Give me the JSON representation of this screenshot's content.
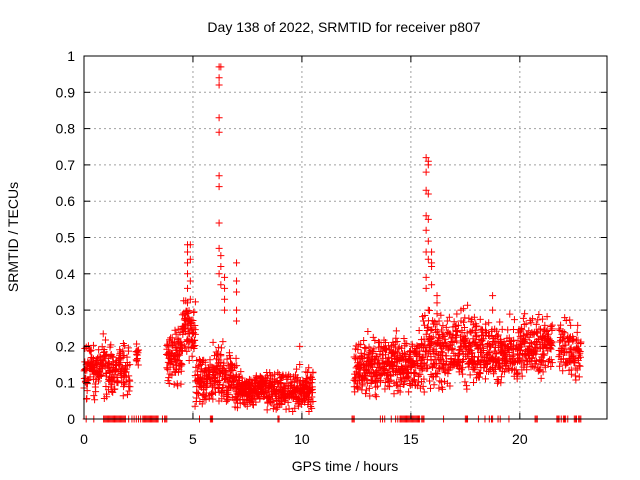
{
  "chart_data": {
    "type": "scatter",
    "title": "Day 138 of 2022, SRMTID for receiver p807",
    "xlabel": "GPS time / hours",
    "ylabel": "SRMTID / TECUs",
    "xlim": [
      0,
      24
    ],
    "ylim": [
      0,
      1
    ],
    "xticks": [
      0,
      5,
      10,
      15,
      20
    ],
    "xtick_labels": [
      "0",
      "5",
      "10",
      "15",
      "20"
    ],
    "yticks": [
      0,
      0.1,
      0.2,
      0.3,
      0.4,
      0.5,
      0.6,
      0.7,
      0.8,
      0.9,
      1
    ],
    "ytick_labels": [
      "0",
      "0.1",
      "0.2",
      "0.3",
      "0.4",
      "0.5",
      "0.6",
      "0.7",
      "0.8",
      "0.9",
      "1"
    ],
    "grid": true,
    "marker": "plus",
    "series": [
      {
        "name": "SRMTID",
        "color": "#ff0000",
        "segments": [
          {
            "t0": 0.0,
            "t1": 2.1,
            "base": 0.14,
            "spread": 0.07,
            "step": 0.03
          },
          {
            "t0": 2.4,
            "t1": 2.5,
            "base": 0.18,
            "spread": 0.03,
            "step": 0.03
          },
          {
            "t0": 3.8,
            "t1": 4.5,
            "base": 0.17,
            "spread": 0.08,
            "step": 0.025
          },
          {
            "t0": 4.5,
            "t1": 5.1,
            "base": 0.25,
            "spread": 0.08,
            "step": 0.025
          },
          {
            "t0": 5.1,
            "t1": 5.9,
            "base": 0.11,
            "spread": 0.06,
            "step": 0.03
          },
          {
            "t0": 5.9,
            "t1": 7.0,
            "base": 0.12,
            "spread": 0.08,
            "step": 0.025
          },
          {
            "t0": 7.0,
            "t1": 8.5,
            "base": 0.08,
            "spread": 0.04,
            "step": 0.025
          },
          {
            "t0": 8.5,
            "t1": 10.5,
            "base": 0.08,
            "spread": 0.05,
            "step": 0.025
          },
          {
            "t0": 12.4,
            "t1": 14.0,
            "base": 0.14,
            "spread": 0.08,
            "step": 0.025
          },
          {
            "t0": 14.0,
            "t1": 15.5,
            "base": 0.15,
            "spread": 0.07,
            "step": 0.025
          },
          {
            "t0": 15.5,
            "t1": 16.5,
            "base": 0.18,
            "spread": 0.1,
            "step": 0.025
          },
          {
            "t0": 16.5,
            "t1": 18.0,
            "base": 0.19,
            "spread": 0.09,
            "step": 0.025
          },
          {
            "t0": 18.0,
            "t1": 20.0,
            "base": 0.18,
            "spread": 0.08,
            "step": 0.025
          },
          {
            "t0": 20.0,
            "t1": 21.5,
            "base": 0.2,
            "spread": 0.08,
            "step": 0.025
          },
          {
            "t0": 21.8,
            "t1": 22.8,
            "base": 0.19,
            "spread": 0.07,
            "step": 0.03
          }
        ],
        "spikes": [
          {
            "x": 4.75,
            "y": [
              0.32,
              0.36,
              0.4,
              0.43,
              0.46,
              0.48
            ]
          },
          {
            "x": 4.88,
            "y": [
              0.33,
              0.38,
              0.44,
              0.48
            ]
          },
          {
            "x": 6.2,
            "y": [
              0.4,
              0.47,
              0.54,
              0.64,
              0.67,
              0.79,
              0.83,
              0.92,
              0.94,
              0.97
            ]
          },
          {
            "x": 6.28,
            "y": [
              0.37,
              0.42,
              0.45,
              0.97
            ]
          },
          {
            "x": 6.45,
            "y": [
              0.3,
              0.33,
              0.36,
              0.39
            ]
          },
          {
            "x": 7.0,
            "y": [
              0.27,
              0.3,
              0.35,
              0.38,
              0.43
            ]
          },
          {
            "x": 9.9,
            "y": [
              0.15,
              0.2
            ]
          },
          {
            "x": 15.7,
            "y": [
              0.36,
              0.39,
              0.46,
              0.52,
              0.56,
              0.63,
              0.68,
              0.72
            ]
          },
          {
            "x": 15.8,
            "y": [
              0.3,
              0.44,
              0.49,
              0.55,
              0.62,
              0.7,
              0.71
            ]
          },
          {
            "x": 15.95,
            "y": [
              0.37,
              0.42,
              0.46,
              0.43
            ]
          },
          {
            "x": 16.2,
            "y": [
              0.29,
              0.32,
              0.34
            ]
          },
          {
            "x": 17.3,
            "y": [
              0.27,
              0.3
            ]
          },
          {
            "x": 18.75,
            "y": [
              0.3,
              0.34
            ]
          }
        ],
        "zero_x": [
          0.1,
          0.45,
          0.9,
          0.95,
          1.0,
          1.05,
          1.1,
          1.15,
          1.2,
          1.25,
          1.3,
          1.35,
          1.4,
          1.45,
          1.5,
          1.55,
          1.6,
          1.65,
          1.7,
          1.75,
          1.8,
          1.85,
          1.9,
          2.05,
          2.2,
          2.3,
          2.4,
          2.5,
          2.6,
          2.7,
          2.75,
          2.8,
          2.85,
          2.9,
          2.95,
          3.0,
          3.05,
          3.1,
          3.15,
          3.2,
          3.25,
          3.3,
          3.35,
          3.4,
          3.6,
          3.7,
          3.75,
          3.8,
          5.3,
          5.8,
          5.85,
          5.9,
          8.9,
          8.95,
          12.3,
          12.35,
          12.4,
          13.6,
          13.7,
          13.8,
          14.1,
          14.3,
          14.4,
          14.5,
          14.55,
          14.6,
          14.65,
          14.7,
          14.75,
          14.8,
          14.85,
          14.9,
          14.95,
          15.0,
          15.05,
          15.1,
          15.15,
          15.2,
          15.25,
          15.3,
          15.35,
          15.4,
          15.5,
          15.55,
          15.6,
          16.5,
          17.5,
          17.55,
          17.6,
          18.1,
          18.4,
          18.6,
          18.7,
          18.75,
          19.0,
          19.1,
          19.5,
          20.7,
          20.75,
          20.8,
          21.7,
          21.75,
          21.8,
          21.9,
          22.0,
          22.05,
          22.1,
          22.2,
          22.5,
          22.55,
          22.6,
          22.7,
          22.75,
          22.8
        ]
      }
    ]
  }
}
